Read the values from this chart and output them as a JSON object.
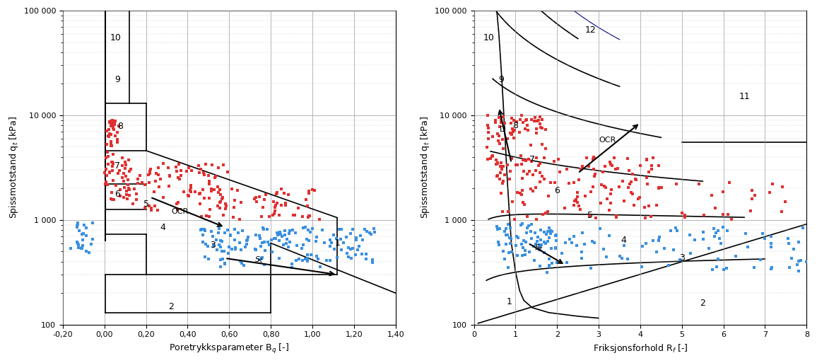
{
  "xlabel_left": "Poretrykksparameter B_q [-]",
  "xlabel_right": "Friksjonsforhold R_f [-]",
  "ylabel": "Spissmotstand q_t [kPa]",
  "ylim": [
    100,
    100000
  ],
  "xlim_left": [
    -0.2,
    1.4
  ],
  "xlim_right": [
    0,
    8
  ],
  "xticks_left": [
    -0.2,
    0.0,
    0.2,
    0.4,
    0.6,
    0.8,
    1.0,
    1.2,
    1.4
  ],
  "xticks_right": [
    0,
    1,
    2,
    3,
    4,
    5,
    6,
    7,
    8
  ],
  "bg_color": "#ffffff",
  "grid_major_color": "#999999",
  "grid_minor_color": "#cccccc",
  "scatter_red": "#e03030",
  "scatter_blue": "#3a90e0",
  "line_color": "#000000",
  "zone_lw": 1.2,
  "zone_labels_left": [
    [
      "10",
      0.055,
      55000
    ],
    [
      "9",
      0.062,
      22000
    ],
    [
      "8",
      0.075,
      7800
    ],
    [
      "7",
      0.062,
      3300
    ],
    [
      "6",
      0.062,
      1750
    ],
    [
      "5",
      0.2,
      1420
    ],
    [
      "4",
      0.28,
      850
    ],
    [
      "3",
      0.52,
      570
    ],
    [
      "2",
      0.32,
      148
    ],
    [
      "1",
      1.12,
      600
    ]
  ],
  "zone_labels_right": [
    [
      "10",
      0.35,
      55000
    ],
    [
      "9",
      0.65,
      22000
    ],
    [
      "8",
      1.0,
      8000
    ],
    [
      "7",
      1.4,
      3800
    ],
    [
      "6",
      2.0,
      1900
    ],
    [
      "5",
      2.8,
      1100
    ],
    [
      "4",
      3.6,
      640
    ],
    [
      "3",
      5.0,
      430
    ],
    [
      "2",
      5.5,
      160
    ],
    [
      "1",
      0.85,
      165
    ],
    [
      "11",
      6.5,
      15000
    ],
    [
      "12",
      2.8,
      65000
    ]
  ]
}
